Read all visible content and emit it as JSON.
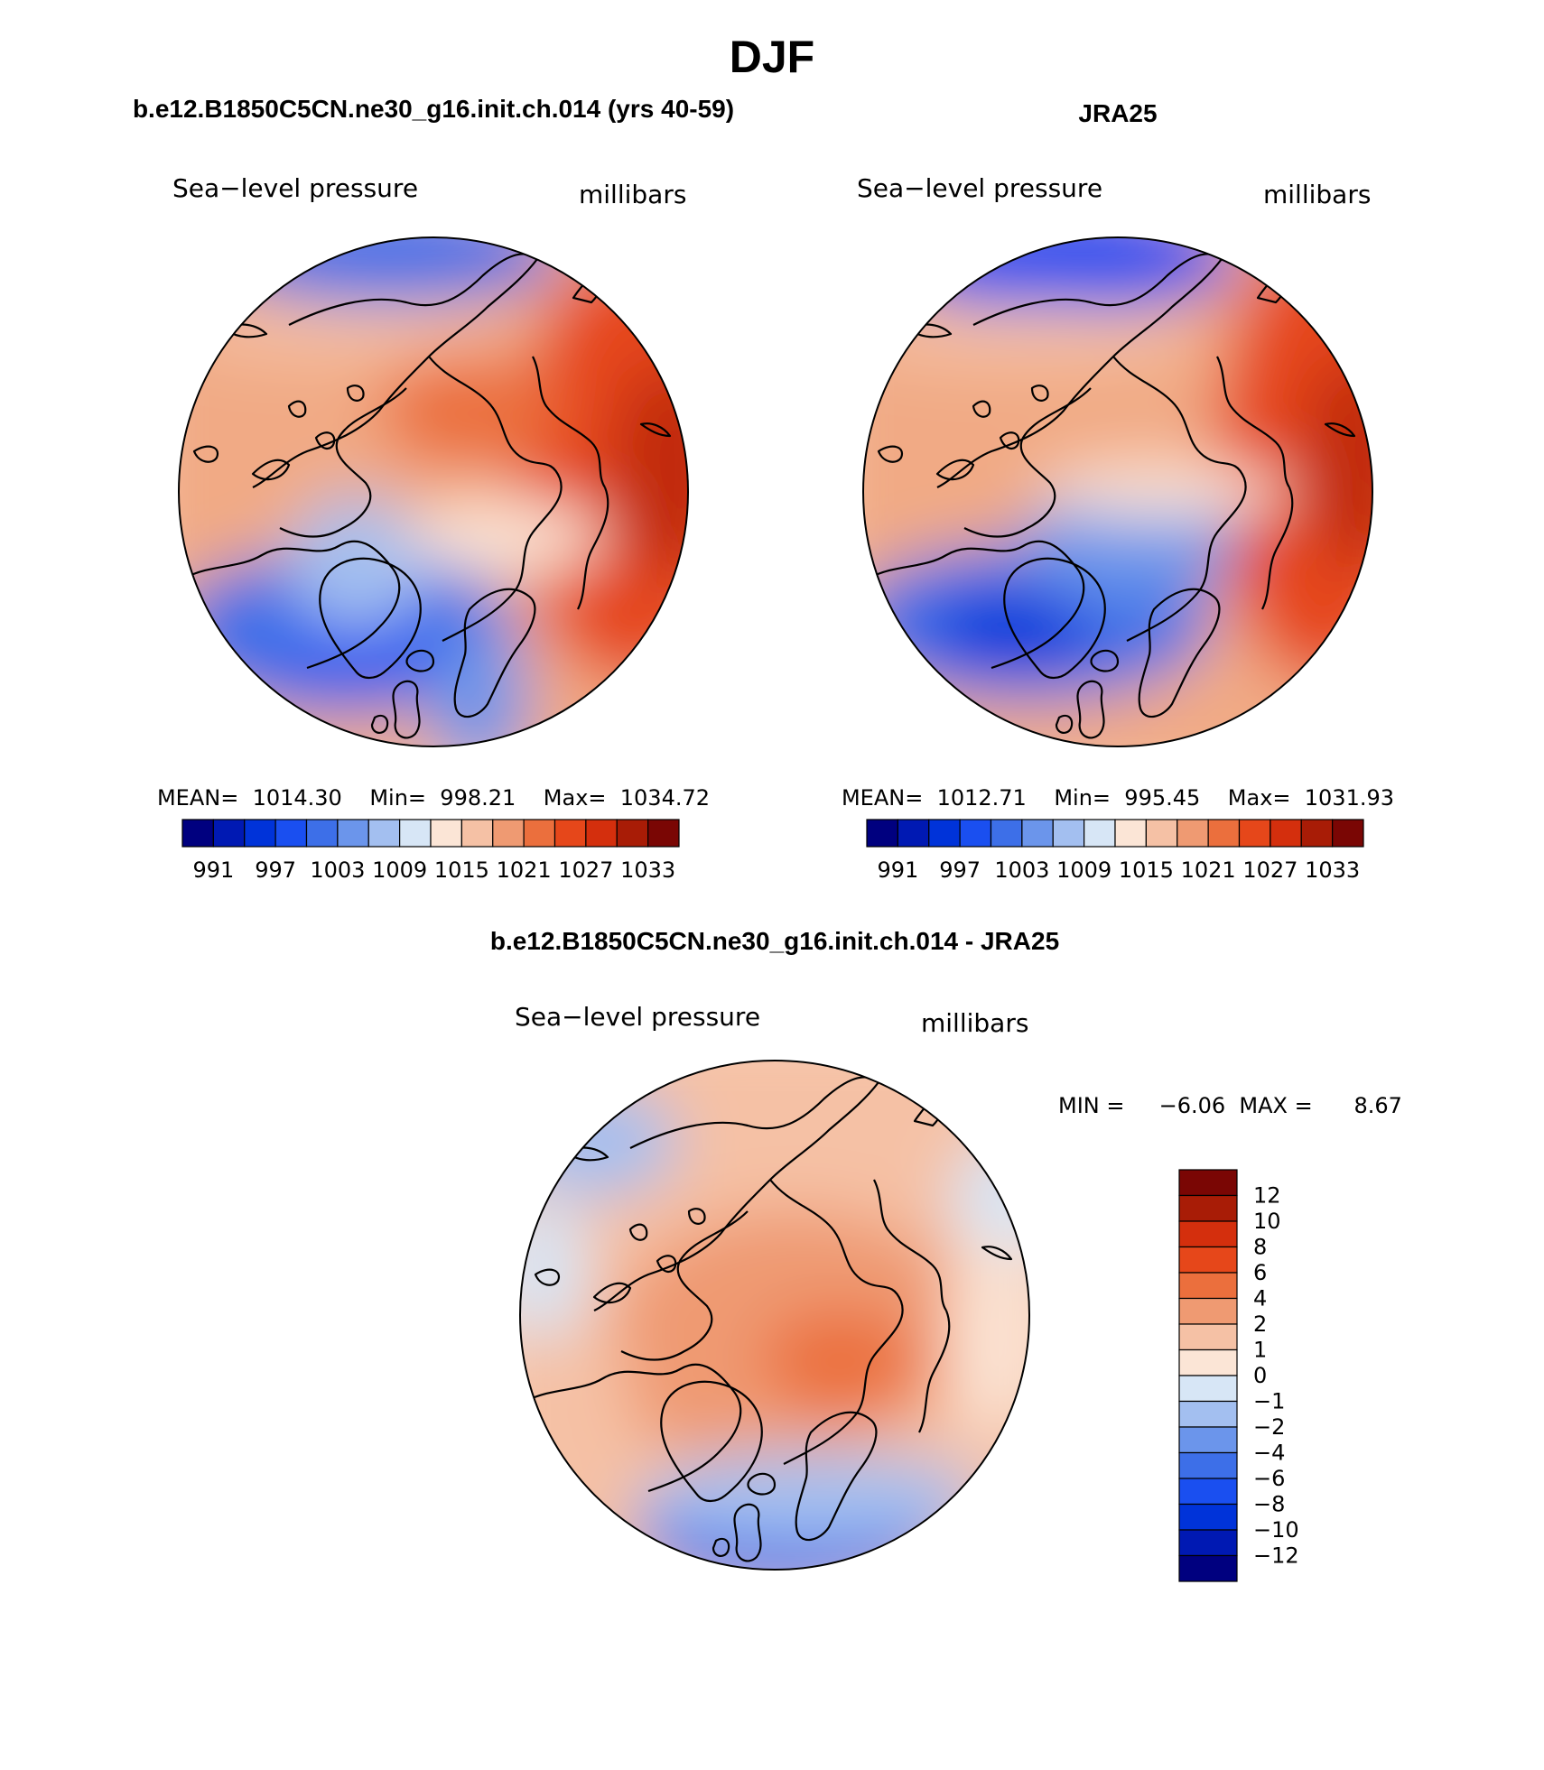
{
  "season_title": "DJF",
  "palette_abs": [
    "#00007f",
    "#0019b3",
    "#0033d9",
    "#1a4ff0",
    "#3d6fe8",
    "#6b95eb",
    "#a3bff0",
    "#d7e6f6",
    "#fbe5d6",
    "#f5c1a5",
    "#ef9a72",
    "#eb6f3d",
    "#e6471a",
    "#d42f0d",
    "#a81c06",
    "#7a0604"
  ],
  "palette_diff": [
    "#7a0604",
    "#a81c06",
    "#d42f0d",
    "#e6471a",
    "#eb6f3d",
    "#ef9a72",
    "#f5c1a5",
    "#fbe5d6",
    "#d7e6f6",
    "#a3bff0",
    "#6b95eb",
    "#3d6fe8",
    "#1a4ff0",
    "#0033d9",
    "#0019b3",
    "#00007f"
  ],
  "panels": {
    "model": {
      "title": "b.e12.B1850C5CN.ne30_g16.init.ch.014 (yrs 40-59)",
      "variable": "Sea−level pressure",
      "units": "millibars",
      "stats": "MEAN=  1014.30    Min=  998.21    Max=  1034.72",
      "mean": 1014.3,
      "min": 998.21,
      "max": 1034.72,
      "labelbar": [
        "991",
        "997",
        "1003",
        "1009",
        "1015",
        "1021",
        "1027",
        "1033"
      ]
    },
    "obs": {
      "title": "JRA25",
      "variable": "Sea−level pressure",
      "units": "millibars",
      "stats": "MEAN=  1012.71    Min=  995.45    Max=  1031.93",
      "mean": 1012.71,
      "min": 995.45,
      "max": 1031.93,
      "labelbar": [
        "991",
        "997",
        "1003",
        "1009",
        "1015",
        "1021",
        "1027",
        "1033"
      ]
    },
    "diff": {
      "title": "b.e12.B1850C5CN.ne30_g16.init.ch.014 - JRA25",
      "variable": "Sea−level pressure",
      "units": "millibars",
      "stats": "MIN =     −6.06  MAX =      8.67",
      "min": -6.06,
      "max": 8.67,
      "labelbar": [
        "12",
        "10",
        "8",
        "6",
        "4",
        "2",
        "1",
        "0",
        "−1",
        "−2",
        "−4",
        "−6",
        "−8",
        "−10",
        "−12"
      ]
    }
  }
}
